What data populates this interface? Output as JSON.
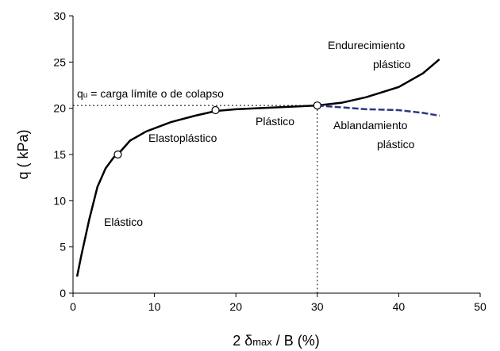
{
  "chart_data": {
    "type": "line",
    "xlabel_parts": [
      "2 δ",
      "max",
      " / B (%)"
    ],
    "ylabel": "q ( kPa)",
    "xlim": [
      0,
      50
    ],
    "xticks": [
      0,
      10,
      20,
      30,
      40,
      50
    ],
    "ylim": [
      0,
      30
    ],
    "yticks": [
      0,
      5,
      10,
      15,
      20,
      25,
      30
    ],
    "series": [
      {
        "color": "#000000",
        "dash": "none",
        "x": [
          0.5,
          1,
          2,
          3,
          4,
          5,
          5.5,
          7,
          9,
          12,
          15,
          17.5,
          20,
          25,
          30,
          33,
          36,
          40,
          43,
          45
        ],
        "values": [
          1.8,
          4,
          8,
          11.5,
          13.5,
          14.7,
          15,
          16.5,
          17.5,
          18.5,
          19.2,
          19.7,
          19.9,
          20.1,
          20.3,
          20.6,
          21.2,
          22.3,
          23.8,
          25.3
        ]
      },
      {
        "color": "#2e3580",
        "dash": "8 3",
        "x": [
          30,
          33,
          36,
          40,
          43,
          45
        ],
        "values": [
          20.3,
          20.1,
          19.9,
          19.8,
          19.5,
          19.2
        ]
      }
    ],
    "markers": {
      "x": [
        5.5,
        17.5,
        30
      ],
      "values": [
        15,
        19.8,
        20.3
      ]
    },
    "annotation_qu": [
      "q",
      "u",
      " = carga límite o de colapso"
    ],
    "annotations": [
      "Endurecimiento",
      "plástico",
      "Plástico",
      "Ablandamiento",
      "plástico",
      "Elastoplástico",
      "Elástico"
    ]
  }
}
